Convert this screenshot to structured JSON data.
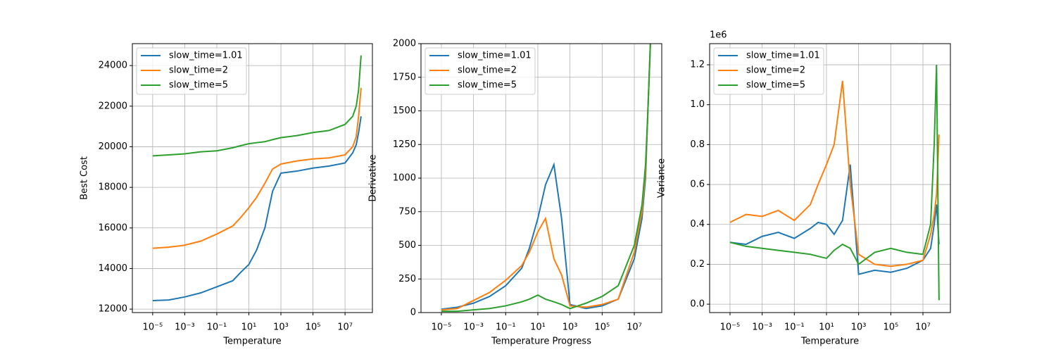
{
  "chart_data": [
    {
      "type": "line",
      "xlabel": "Temperature",
      "ylabel": "Best Cost",
      "xscale": "log",
      "grid": true,
      "legend": "upper left",
      "x": [
        1e-05,
        0.0001,
        0.001,
        0.01,
        0.1,
        1,
        3,
        10,
        30,
        100,
        300,
        1000,
        10000.0,
        100000.0,
        1000000.0,
        10000000.0,
        30000000.0,
        50000000.0,
        70000000.0,
        100000000.0
      ],
      "xlim": [
        5.4e-07,
        510000000.0
      ],
      "ylim": [
        11830,
        25080
      ],
      "xticks": [
        {
          "value": 1e-05,
          "label": "10⁻⁵"
        },
        {
          "value": 0.001,
          "label": "10⁻³"
        },
        {
          "value": 0.1,
          "label": "10⁻¹"
        },
        {
          "value": 10,
          "label": "10¹"
        },
        {
          "value": 1000,
          "label": "10³"
        },
        {
          "value": 100000.0,
          "label": "10⁵"
        },
        {
          "value": 10000000.0,
          "label": "10⁷"
        }
      ],
      "yticks": [
        12000,
        14000,
        16000,
        18000,
        20000,
        22000,
        24000
      ],
      "series": [
        {
          "name": "slow_time=1.01",
          "color": "#1f77b4",
          "values": [
            12420,
            12450,
            12600,
            12800,
            13100,
            13400,
            13800,
            14200,
            14900,
            16000,
            17800,
            18700,
            18800,
            18950,
            19050,
            19200,
            19700,
            20100,
            20700,
            21500
          ]
        },
        {
          "name": "slow_time=2",
          "color": "#ff7f0e",
          "values": [
            15000,
            15050,
            15150,
            15350,
            15700,
            16100,
            16500,
            17000,
            17500,
            18200,
            18900,
            19150,
            19300,
            19400,
            19450,
            19600,
            20000,
            20500,
            21500,
            22900
          ]
        },
        {
          "name": "slow_time=5",
          "color": "#2ca02c",
          "values": [
            19550,
            19600,
            19650,
            19750,
            19800,
            19950,
            20050,
            20150,
            20200,
            20250,
            20350,
            20450,
            20550,
            20700,
            20800,
            21100,
            21500,
            22000,
            22800,
            24500
          ]
        }
      ]
    },
    {
      "type": "line",
      "xlabel": "Temperature Progress",
      "ylabel": "Derivative",
      "xscale": "log",
      "grid": true,
      "legend": "upper left",
      "x": [
        1e-05,
        0.0001,
        0.001,
        0.01,
        0.1,
        1,
        3,
        10,
        30,
        100,
        300,
        1000,
        10000.0,
        100000.0,
        1000000.0,
        10000000.0,
        30000000.0,
        50000000.0,
        70000000.0,
        100000000.0
      ],
      "xlim": [
        5.4e-07,
        510000000.0
      ],
      "ylim": [
        0,
        2000
      ],
      "xticks": [
        {
          "value": 1e-05,
          "label": "10⁻⁵"
        },
        {
          "value": 0.001,
          "label": "10⁻³"
        },
        {
          "value": 0.1,
          "label": "10⁻¹"
        },
        {
          "value": 10,
          "label": "10¹"
        },
        {
          "value": 1000,
          "label": "10³"
        },
        {
          "value": 100000.0,
          "label": "10⁵"
        },
        {
          "value": 10000000.0,
          "label": "10⁷"
        }
      ],
      "yticks": [
        0,
        250,
        500,
        750,
        1000,
        1250,
        1500,
        1750,
        2000
      ],
      "series": [
        {
          "name": "slow_time=1.01",
          "color": "#1f77b4",
          "values": [
            25,
            40,
            70,
            120,
            200,
            330,
            480,
            700,
            950,
            1100,
            700,
            60,
            30,
            50,
            100,
            400,
            700,
            1000,
            1500,
            2000
          ]
        },
        {
          "name": "slow_time=2",
          "color": "#ff7f0e",
          "values": [
            20,
            30,
            90,
            150,
            240,
            350,
            450,
            600,
            700,
            400,
            280,
            50,
            40,
            60,
            100,
            450,
            750,
            1050,
            1500,
            2000
          ]
        },
        {
          "name": "slow_time=5",
          "color": "#2ca02c",
          "values": [
            10,
            10,
            20,
            30,
            50,
            80,
            100,
            130,
            100,
            80,
            60,
            30,
            70,
            120,
            200,
            500,
            800,
            1100,
            1500,
            2000
          ]
        }
      ]
    },
    {
      "type": "line",
      "xlabel": "Temperature",
      "ylabel": "Variance",
      "y_offset_label": "1e6",
      "xscale": "log",
      "grid": true,
      "legend": "upper left",
      "x": [
        1e-05,
        0.0001,
        0.001,
        0.01,
        0.1,
        1,
        3,
        10,
        30,
        100,
        300,
        1000,
        10000.0,
        100000.0,
        1000000.0,
        10000000.0,
        30000000.0,
        50000000.0,
        70000000.0,
        100000000.0
      ],
      "xlim": [
        5.4e-07,
        510000000.0
      ],
      "ylim": [
        -0.042,
        1.306
      ],
      "xticks": [
        {
          "value": 1e-05,
          "label": "10⁻⁵"
        },
        {
          "value": 0.001,
          "label": "10⁻³"
        },
        {
          "value": 0.1,
          "label": "10⁻¹"
        },
        {
          "value": 10,
          "label": "10¹"
        },
        {
          "value": 1000,
          "label": "10³"
        },
        {
          "value": 100000.0,
          "label": "10⁵"
        },
        {
          "value": 10000000.0,
          "label": "10⁷"
        }
      ],
      "yticks": [
        {
          "value": 0,
          "label": "0.0"
        },
        {
          "value": 0.2,
          "label": "0.2"
        },
        {
          "value": 0.4,
          "label": "0.4"
        },
        {
          "value": 0.6,
          "label": "0.6"
        },
        {
          "value": 0.8,
          "label": "0.8"
        },
        {
          "value": 1,
          "label": "1.0"
        },
        {
          "value": 1.2,
          "label": "1.2"
        }
      ],
      "series": [
        {
          "name": "slow_time=1.01",
          "color": "#1f77b4",
          "values": [
            0.31,
            0.3,
            0.34,
            0.36,
            0.33,
            0.38,
            0.41,
            0.4,
            0.35,
            0.42,
            0.7,
            0.15,
            0.17,
            0.16,
            0.18,
            0.22,
            0.28,
            0.4,
            0.5,
            0.3
          ]
        },
        {
          "name": "slow_time=2",
          "color": "#ff7f0e",
          "values": [
            0.41,
            0.45,
            0.44,
            0.47,
            0.42,
            0.5,
            0.6,
            0.7,
            0.8,
            1.12,
            0.6,
            0.25,
            0.2,
            0.19,
            0.2,
            0.22,
            0.35,
            0.45,
            0.55,
            0.85
          ]
        },
        {
          "name": "slow_time=5",
          "color": "#2ca02c",
          "values": [
            0.31,
            0.29,
            0.28,
            0.27,
            0.26,
            0.25,
            0.24,
            0.23,
            0.27,
            0.3,
            0.28,
            0.2,
            0.26,
            0.28,
            0.26,
            0.25,
            0.4,
            0.8,
            1.2,
            0.02
          ]
        }
      ]
    }
  ]
}
